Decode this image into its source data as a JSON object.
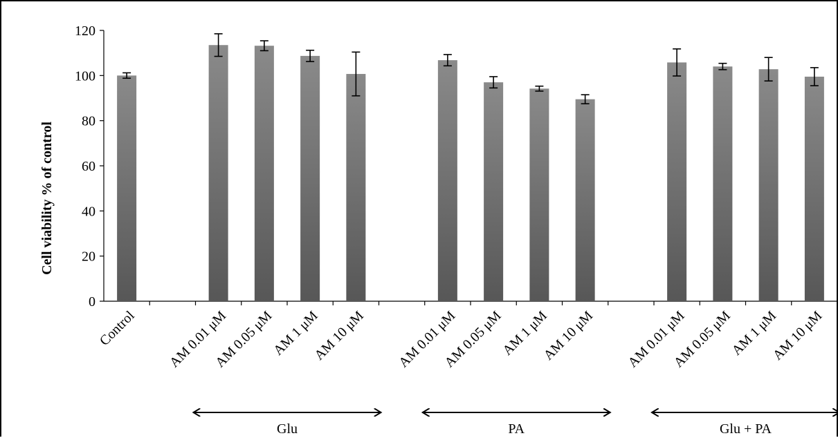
{
  "chart_data": {
    "type": "bar",
    "title": "",
    "ylabel": "Cell viability % of control",
    "xlabel": "",
    "ylim": [
      0,
      120
    ],
    "yticks": [
      "0",
      "20",
      "40",
      "60",
      "80",
      "100",
      "120"
    ],
    "grid": false,
    "legend": "none",
    "categories": [
      "Control",
      "",
      "AM 0.01 μM",
      "AM 0.05 μM",
      "AM 1 μM",
      "AM 10 μM",
      "",
      "AM 0.01 μM",
      "AM 0.05 μM",
      "AM 1 μM",
      "AM 10 μM",
      "",
      "AM 0.01 μM",
      "AM 0.05 μM",
      "AM 1 μM",
      "AM 10 μM"
    ],
    "values": [
      100,
      null,
      113.5,
      113.2,
      108.7,
      100.7,
      null,
      106.8,
      97,
      94.2,
      89.5,
      null,
      105.8,
      104,
      102.8,
      99.5
    ],
    "errors": [
      1.2,
      null,
      5,
      2.2,
      2.5,
      9.7,
      null,
      2.5,
      2.5,
      1.1,
      2,
      null,
      6,
      1.4,
      5.2,
      4
    ],
    "groups": [
      {
        "label": "Glu",
        "from": 2,
        "to": 5
      },
      {
        "label": "PA",
        "from": 7,
        "to": 10
      },
      {
        "label": "Glu + PA",
        "from": 12,
        "to": 15
      }
    ],
    "bar_color_top": "#8a8a8a",
    "bar_color_bottom": "#575757"
  }
}
